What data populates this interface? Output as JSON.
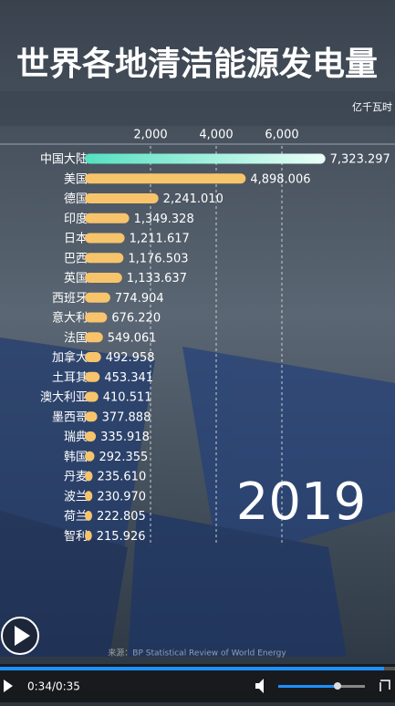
{
  "chart_data": {
    "type": "bar",
    "orientation": "horizontal",
    "title": "世界各地清洁能源发电量",
    "unit_label": "亿千瓦时",
    "year_label": "2019",
    "categories": [
      "中国大陆",
      "美国",
      "德国",
      "印度",
      "日本",
      "巴西",
      "英国",
      "西班牙",
      "意大利",
      "法国",
      "加拿大",
      "土耳其",
      "澳大利亚",
      "墨西哥",
      "瑞典",
      "韩国",
      "丹麦",
      "波兰",
      "荷兰",
      "智利"
    ],
    "values": [
      7323.297,
      4898.006,
      2241.01,
      1349.328,
      1211.617,
      1176.503,
      1133.637,
      774.904,
      676.22,
      549.061,
      492.958,
      453.341,
      410.511,
      377.888,
      335.918,
      292.355,
      235.61,
      230.97,
      222.805,
      215.926
    ],
    "value_labels": [
      "7,323.297",
      "4,898.006",
      "2,241.010",
      "1,349.328",
      "1,211.617",
      "1,176.503",
      "1,133.637",
      "774.904",
      "676.220",
      "549.061",
      "492.958",
      "453.341",
      "410.511",
      "377.888",
      "335.918",
      "292.355",
      "235.610",
      "230.970",
      "222.805",
      "215.926"
    ],
    "colors": [
      "#62e8c8",
      "#f7c46c",
      "#f7c46c",
      "#f7c46c",
      "#f7c46c",
      "#f7c46c",
      "#f7c46c",
      "#f7c46c",
      "#f7c46c",
      "#f7c46c",
      "#f7c46c",
      "#f7c46c",
      "#f7c46c",
      "#f7c46c",
      "#f7c46c",
      "#f7c46c",
      "#f7c46c",
      "#f7c46c",
      "#f7c46c",
      "#f7c46c"
    ],
    "xlim": [
      0,
      9000
    ],
    "xticks": [
      {
        "value": 2000,
        "label": "2,000"
      },
      {
        "value": 4000,
        "label": "4,000"
      },
      {
        "value": 6000,
        "label": "6,000"
      }
    ],
    "grid": true
  },
  "source": "来源：BP Statistical Review of World Energy",
  "player": {
    "time": "0:34/0:35"
  }
}
